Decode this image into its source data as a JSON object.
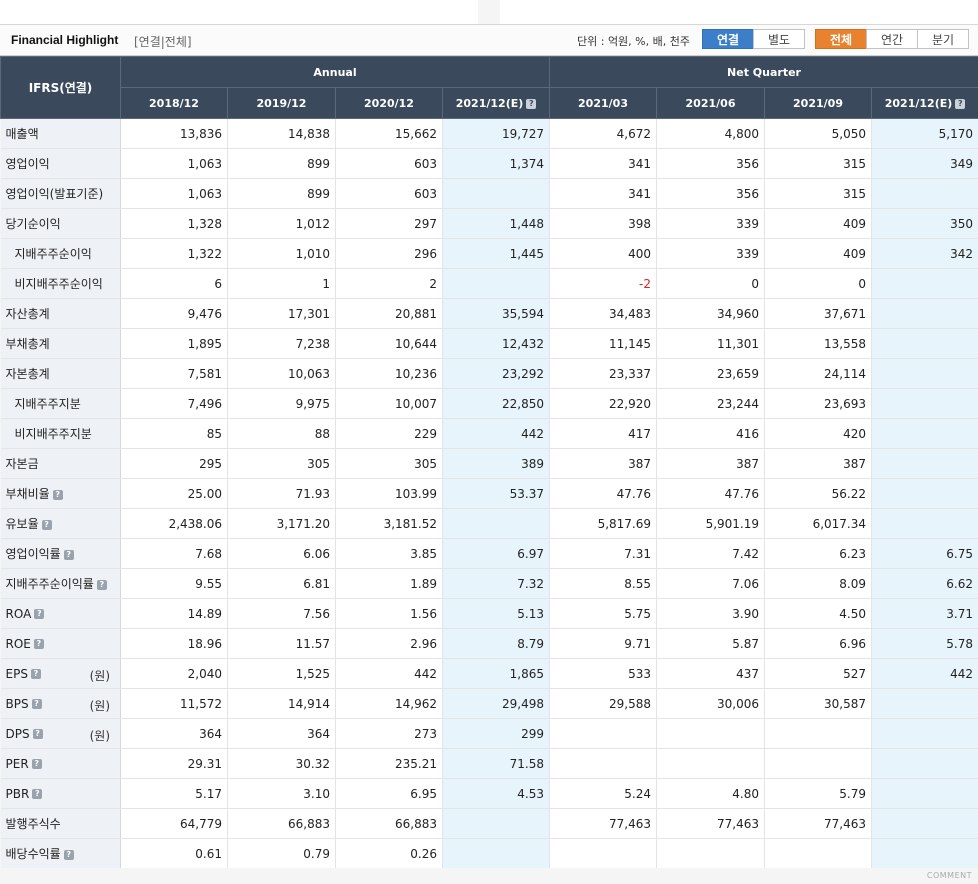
{
  "header": {
    "title": "Financial Highlight",
    "subtitle": "[연결|전체]",
    "unit_text": "단위 : 억원, %, 배, 천주",
    "buttons": [
      "연결",
      "별도",
      "전체",
      "연간",
      "분기"
    ]
  },
  "table": {
    "corner": "IFRS(연결)",
    "groups": [
      "Annual",
      "Net Quarter"
    ],
    "columns": [
      "2018/12",
      "2019/12",
      "2020/12",
      "2021/12(E)",
      "2021/03",
      "2021/06",
      "2021/09",
      "2021/12(E)"
    ],
    "rows": [
      {
        "label": "매출액",
        "unit": "",
        "values": [
          "13,836",
          "14,838",
          "15,662",
          "19,727",
          "4,672",
          "4,800",
          "5,050",
          "5,170"
        ]
      },
      {
        "label": "영업이익",
        "unit": "",
        "values": [
          "1,063",
          "899",
          "603",
          "1,374",
          "341",
          "356",
          "315",
          "349"
        ]
      },
      {
        "label": "영업이익(발표기준)",
        "unit": "",
        "values": [
          "1,063",
          "899",
          "603",
          "",
          "341",
          "356",
          "315",
          ""
        ]
      },
      {
        "label": "당기순이익",
        "unit": "",
        "values": [
          "1,328",
          "1,012",
          "297",
          "1,448",
          "398",
          "339",
          "409",
          "350"
        ]
      },
      {
        "label": "지배주주순이익",
        "unit": "",
        "values": [
          "1,322",
          "1,010",
          "296",
          "1,445",
          "400",
          "339",
          "409",
          "342"
        ]
      },
      {
        "label": "비지배주주순이익",
        "unit": "",
        "values": [
          "6",
          "1",
          "2",
          "",
          "-2",
          "0",
          "0",
          ""
        ]
      },
      {
        "label": "자산총계",
        "unit": "",
        "values": [
          "9,476",
          "17,301",
          "20,881",
          "35,594",
          "34,483",
          "34,960",
          "37,671",
          ""
        ]
      },
      {
        "label": "부채총계",
        "unit": "",
        "values": [
          "1,895",
          "7,238",
          "10,644",
          "12,432",
          "11,145",
          "11,301",
          "13,558",
          ""
        ]
      },
      {
        "label": "자본총계",
        "unit": "",
        "values": [
          "7,581",
          "10,063",
          "10,236",
          "23,292",
          "23,337",
          "23,659",
          "24,114",
          ""
        ]
      },
      {
        "label": "지배주주지분",
        "unit": "",
        "values": [
          "7,496",
          "9,975",
          "10,007",
          "22,850",
          "22,920",
          "23,244",
          "23,693",
          ""
        ]
      },
      {
        "label": "비지배주주지분",
        "unit": "",
        "values": [
          "85",
          "88",
          "229",
          "442",
          "417",
          "416",
          "420",
          ""
        ]
      },
      {
        "label": "자본금",
        "unit": "",
        "values": [
          "295",
          "305",
          "305",
          "389",
          "387",
          "387",
          "387",
          ""
        ]
      },
      {
        "label": "부채비율",
        "unit": "",
        "values": [
          "25.00",
          "71.93",
          "103.99",
          "53.37",
          "47.76",
          "47.76",
          "56.22",
          ""
        ]
      },
      {
        "label": "유보율",
        "unit": "",
        "values": [
          "2,438.06",
          "3,171.20",
          "3,181.52",
          "",
          "5,817.69",
          "5,901.19",
          "6,017.34",
          ""
        ]
      },
      {
        "label": "영업이익률",
        "unit": "",
        "values": [
          "7.68",
          "6.06",
          "3.85",
          "6.97",
          "7.31",
          "7.42",
          "6.23",
          "6.75"
        ]
      },
      {
        "label": "지배주주순이익률",
        "unit": "",
        "values": [
          "9.55",
          "6.81",
          "1.89",
          "7.32",
          "8.55",
          "7.06",
          "8.09",
          "6.62"
        ]
      },
      {
        "label": "ROA",
        "unit": "",
        "values": [
          "14.89",
          "7.56",
          "1.56",
          "5.13",
          "5.75",
          "3.90",
          "4.50",
          "3.71"
        ]
      },
      {
        "label": "ROE",
        "unit": "",
        "values": [
          "18.96",
          "11.57",
          "2.96",
          "8.79",
          "9.71",
          "5.87",
          "6.96",
          "5.78"
        ]
      },
      {
        "label": "EPS",
        "unit": "(원)",
        "values": [
          "2,040",
          "1,525",
          "442",
          "1,865",
          "533",
          "437",
          "527",
          "442"
        ]
      },
      {
        "label": "BPS",
        "unit": "(원)",
        "values": [
          "11,572",
          "14,914",
          "14,962",
          "29,498",
          "29,588",
          "30,006",
          "30,587",
          ""
        ]
      },
      {
        "label": "DPS",
        "unit": "(원)",
        "values": [
          "364",
          "364",
          "273",
          "299",
          "",
          "",
          "",
          ""
        ]
      },
      {
        "label": "PER",
        "unit": "",
        "values": [
          "29.31",
          "30.32",
          "235.21",
          "71.58",
          "",
          "",
          "",
          ""
        ]
      },
      {
        "label": "PBR",
        "unit": "",
        "values": [
          "5.17",
          "3.10",
          "6.95",
          "4.53",
          "5.24",
          "4.80",
          "5.79",
          ""
        ]
      },
      {
        "label": "발행주식수",
        "unit": "",
        "values": [
          "64,779",
          "66,883",
          "66,883",
          "",
          "77,463",
          "77,463",
          "77,463",
          ""
        ]
      },
      {
        "label": "배당수익률",
        "unit": "",
        "values": [
          "0.61",
          "0.79",
          "0.26",
          "",
          "",
          "",
          "",
          ""
        ]
      }
    ]
  },
  "footer": {
    "comment": "COMMENT"
  },
  "colors": {
    "header_bg": "#3a4a5c",
    "label_bg": "#eef1f5",
    "estimate_bg": "#e7f4fb",
    "blue_button": "#3c7fc8",
    "orange_button": "#e8822e",
    "negative": "#e02020"
  }
}
